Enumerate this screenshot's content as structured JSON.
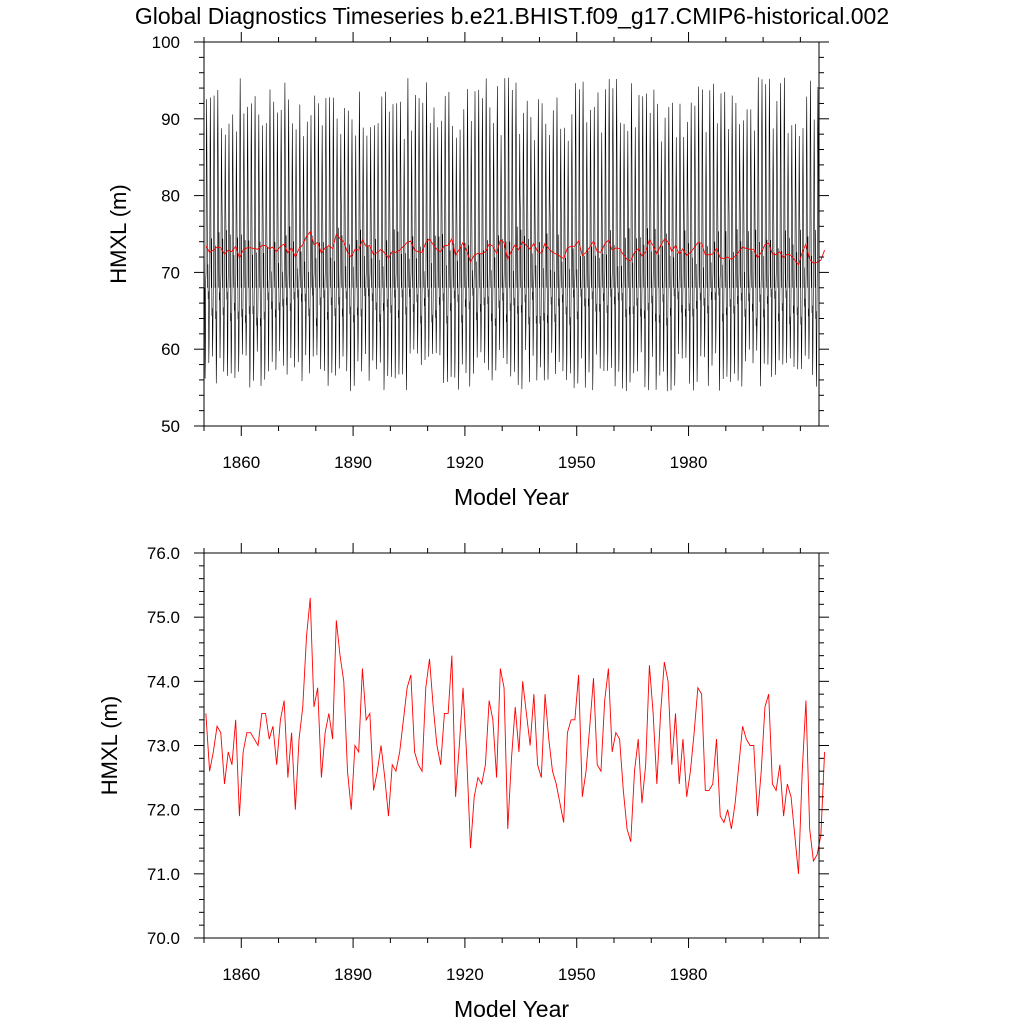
{
  "figure": {
    "title": "Global Diagnostics Timeseries b.e21.BHIST.f09_g17.CMIP6-historical.002"
  },
  "chart_data": [
    {
      "type": "line",
      "title": "Global Diagnostics Timeseries b.e21.BHIST.f09_g17.CMIP6-historical.002",
      "xlabel": "Model Year",
      "ylabel": "HMXL (m)",
      "xlim": [
        1850,
        2015
      ],
      "ylim": [
        50,
        100
      ],
      "xticks": [
        1860,
        1890,
        1920,
        1950,
        1980
      ],
      "xtick_labels": [
        "1860",
        "1890",
        "1920",
        "1950",
        "1980"
      ],
      "yticks": [
        50,
        60,
        70,
        80,
        90,
        100
      ],
      "ytick_labels": [
        "50",
        "60",
        "70",
        "80",
        "90",
        "100"
      ],
      "series": [
        {
          "name": "monthly",
          "color": "#000000",
          "description_values": {
            "start_year": 1850,
            "end_year": 2014,
            "annual_max_range": [
              87,
              95.5
            ],
            "annual_min_range": [
              54.5,
              60
            ],
            "secondary_peak_range": [
              72,
              78
            ],
            "secondary_trough_range": [
              63,
              67
            ]
          }
        },
        {
          "name": "annual_mean",
          "color": "#ff0000",
          "x_start": 1850,
          "values": [
            73.5,
            72.6,
            72.9,
            73.3,
            73.2,
            72.4,
            72.9,
            72.7,
            73.4,
            71.9,
            72.9,
            73.2,
            73.2,
            73.1,
            73.0,
            73.5,
            73.5,
            73.1,
            73.3,
            72.7,
            73.4,
            73.7,
            72.5,
            73.2,
            72.0,
            73.1,
            73.6,
            74.7,
            75.3,
            73.6,
            73.9,
            72.5,
            73.2,
            73.5,
            73.1,
            74.95,
            74.4,
            74.0,
            72.6,
            72.0,
            73.0,
            72.9,
            74.2,
            73.4,
            73.5,
            72.3,
            72.6,
            73.0,
            72.5,
            71.9,
            72.7,
            72.6,
            72.9,
            73.4,
            73.9,
            74.1,
            72.9,
            72.7,
            72.6,
            73.9,
            74.35,
            73.6,
            73.0,
            72.7,
            73.5,
            73.5,
            74.4,
            72.2,
            73.0,
            73.9,
            72.8,
            71.4,
            72.2,
            72.5,
            72.4,
            72.7,
            73.7,
            73.4,
            72.5,
            74.2,
            73.9,
            71.7,
            72.8,
            73.6,
            72.9,
            74.0,
            73.5,
            73.0,
            73.8,
            72.7,
            72.5,
            73.8,
            73.1,
            72.6,
            72.4,
            72.1,
            71.8,
            73.2,
            73.4,
            73.4,
            74.1,
            72.2,
            72.6,
            73.3,
            74.05,
            72.7,
            72.6,
            73.7,
            74.2,
            72.9,
            73.2,
            73.1,
            72.3,
            71.7,
            71.5,
            72.6,
            73.1,
            72.1,
            72.7,
            74.25,
            73.5,
            72.4,
            73.5,
            74.3,
            74.0,
            72.7,
            73.5,
            72.4,
            73.1,
            72.2,
            72.6,
            73.2,
            73.9,
            73.8,
            72.3,
            72.3,
            72.4,
            73.1,
            71.9,
            71.8,
            72.0,
            71.7,
            72.1,
            72.7,
            73.3,
            73.1,
            73.0,
            73.0,
            71.9,
            72.6,
            73.6,
            73.8,
            72.4,
            72.3,
            72.7,
            71.9,
            72.4,
            72.2,
            71.6,
            71.0,
            72.6,
            73.7,
            71.7,
            71.2,
            71.3,
            71.6,
            72.9
          ]
        }
      ]
    },
    {
      "type": "line",
      "xlabel": "Model Year",
      "ylabel": "HMXL (m)",
      "xlim": [
        1850,
        2015
      ],
      "ylim": [
        70.0,
        76.0
      ],
      "xticks": [
        1860,
        1890,
        1920,
        1950,
        1980
      ],
      "xtick_labels": [
        "1860",
        "1890",
        "1920",
        "1950",
        "1980"
      ],
      "yticks": [
        70.0,
        71.0,
        72.0,
        73.0,
        74.0,
        75.0,
        76.0
      ],
      "ytick_labels": [
        "70.0",
        "71.0",
        "72.0",
        "73.0",
        "74.0",
        "75.0",
        "76.0"
      ],
      "series": [
        {
          "name": "annual_mean",
          "color": "#ff0000",
          "x_start": 1850,
          "values": [
            73.5,
            72.6,
            72.9,
            73.3,
            73.2,
            72.4,
            72.9,
            72.7,
            73.4,
            71.9,
            72.9,
            73.2,
            73.2,
            73.1,
            73.0,
            73.5,
            73.5,
            73.1,
            73.3,
            72.7,
            73.4,
            73.7,
            72.5,
            73.2,
            72.0,
            73.1,
            73.6,
            74.7,
            75.3,
            73.6,
            73.9,
            72.5,
            73.2,
            73.5,
            73.1,
            74.95,
            74.4,
            74.0,
            72.6,
            72.0,
            73.0,
            72.9,
            74.2,
            73.4,
            73.5,
            72.3,
            72.6,
            73.0,
            72.5,
            71.9,
            72.7,
            72.6,
            72.9,
            73.4,
            73.9,
            74.1,
            72.9,
            72.7,
            72.6,
            73.9,
            74.35,
            73.6,
            73.0,
            72.7,
            73.5,
            73.5,
            74.4,
            72.2,
            73.0,
            73.9,
            72.8,
            71.4,
            72.2,
            72.5,
            72.4,
            72.7,
            73.7,
            73.4,
            72.5,
            74.2,
            73.9,
            71.7,
            72.8,
            73.6,
            72.9,
            74.0,
            73.5,
            73.0,
            73.8,
            72.7,
            72.5,
            73.8,
            73.1,
            72.6,
            72.4,
            72.1,
            71.8,
            73.2,
            73.4,
            73.4,
            74.1,
            72.2,
            72.6,
            73.3,
            74.05,
            72.7,
            72.6,
            73.7,
            74.2,
            72.9,
            73.2,
            73.1,
            72.3,
            71.7,
            71.5,
            72.6,
            73.1,
            72.1,
            72.7,
            74.25,
            73.5,
            72.4,
            73.5,
            74.3,
            74.0,
            72.7,
            73.5,
            72.4,
            73.1,
            72.2,
            72.6,
            73.2,
            73.9,
            73.8,
            72.3,
            72.3,
            72.4,
            73.1,
            71.9,
            71.8,
            72.0,
            71.7,
            72.1,
            72.7,
            73.3,
            73.1,
            73.0,
            73.0,
            71.9,
            72.6,
            73.6,
            73.8,
            72.4,
            72.3,
            72.7,
            71.9,
            72.4,
            72.2,
            71.6,
            71.0,
            72.6,
            73.7,
            71.7,
            71.2,
            71.3,
            71.6,
            72.9
          ]
        }
      ]
    }
  ]
}
